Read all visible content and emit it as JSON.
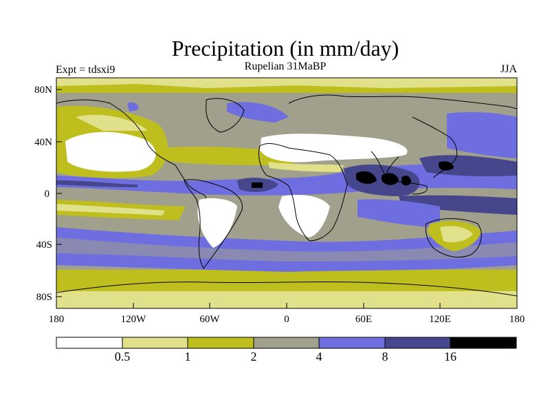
{
  "header": {
    "title": "Precipitation (in mm/day)",
    "subtitle": "Rupelian  31MaBP",
    "experiment": "Expt = tdsxi9",
    "season": "JJA"
  },
  "axes": {
    "lat_labels": [
      "80N",
      "40N",
      "0",
      "40S",
      "80S"
    ],
    "lon_labels": [
      "180",
      "120W",
      "60W",
      "0",
      "60E",
      "120E",
      "180"
    ]
  },
  "colorbar": {
    "labels": [
      "0.5",
      "1",
      "2",
      "4",
      "8",
      "16"
    ],
    "colors": [
      "#ffffff",
      "#e1e18c",
      "#bebe1e",
      "#a0a08c",
      "#6e6ee1",
      "#46468c",
      "#000000"
    ]
  },
  "palette": {
    "white": "#ffffff",
    "pale": "#e1e18c",
    "olive": "#bebe1e",
    "gray": "#a0a08c",
    "blue": "#6e6ee1",
    "navy": "#46468c",
    "black": "#000000",
    "coast": "#000000"
  }
}
